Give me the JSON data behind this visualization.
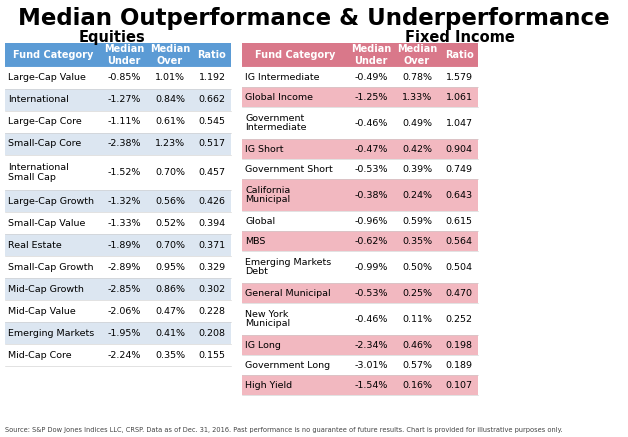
{
  "title": "Median Outperformance & Underperformance",
  "subtitle_left": "Equities",
  "subtitle_right": "Fixed Income",
  "footnote": "Source: S&P Dow Jones Indices LLC, CRSP. Data as of Dec. 31, 2016. Past performance is no guarantee of future results. Chart is provided for illustrative purposes only.",
  "equities_headers": [
    "Fund Category",
    "Median\nUnder",
    "Median\nOver",
    "Ratio"
  ],
  "equities_rows": [
    [
      "Large-Cap Value",
      "-0.85%",
      "1.01%",
      "1.192"
    ],
    [
      "International",
      "-1.27%",
      "0.84%",
      "0.662"
    ],
    [
      "Large-Cap Core",
      "-1.11%",
      "0.61%",
      "0.545"
    ],
    [
      "Small-Cap Core",
      "-2.38%",
      "1.23%",
      "0.517"
    ],
    [
      "International\nSmall Cap",
      "-1.52%",
      "0.70%",
      "0.457"
    ],
    [
      "Large-Cap Growth",
      "-1.32%",
      "0.56%",
      "0.426"
    ],
    [
      "Small-Cap Value",
      "-1.33%",
      "0.52%",
      "0.394"
    ],
    [
      "Real Estate",
      "-1.89%",
      "0.70%",
      "0.371"
    ],
    [
      "Small-Cap Growth",
      "-2.89%",
      "0.95%",
      "0.329"
    ],
    [
      "Mid-Cap Growth",
      "-2.85%",
      "0.86%",
      "0.302"
    ],
    [
      "Mid-Cap Value",
      "-2.06%",
      "0.47%",
      "0.228"
    ],
    [
      "Emerging Markets",
      "-1.95%",
      "0.41%",
      "0.208"
    ],
    [
      "Mid-Cap Core",
      "-2.24%",
      "0.35%",
      "0.155"
    ]
  ],
  "fixed_headers": [
    "Fund Category",
    "Median\nUnder",
    "Median\nOver",
    "Ratio"
  ],
  "fixed_rows": [
    [
      "IG Intermediate",
      "-0.49%",
      "0.78%",
      "1.579"
    ],
    [
      "Global Income",
      "-1.25%",
      "1.33%",
      "1.061"
    ],
    [
      "Government\nIntermediate",
      "-0.46%",
      "0.49%",
      "1.047"
    ],
    [
      "IG Short",
      "-0.47%",
      "0.42%",
      "0.904"
    ],
    [
      "Government Short",
      "-0.53%",
      "0.39%",
      "0.749"
    ],
    [
      "California\nMunicipal",
      "-0.38%",
      "0.24%",
      "0.643"
    ],
    [
      "Global",
      "-0.96%",
      "0.59%",
      "0.615"
    ],
    [
      "MBS",
      "-0.62%",
      "0.35%",
      "0.564"
    ],
    [
      "Emerging Markets\nDebt",
      "-0.99%",
      "0.50%",
      "0.504"
    ],
    [
      "General Municipal",
      "-0.53%",
      "0.25%",
      "0.470"
    ],
    [
      "New York\nMunicipal",
      "-0.46%",
      "0.11%",
      "0.252"
    ],
    [
      "IG Long",
      "-2.34%",
      "0.46%",
      "0.198"
    ],
    [
      "Government Long",
      "-3.01%",
      "0.57%",
      "0.189"
    ],
    [
      "High Yield",
      "-1.54%",
      "0.16%",
      "0.107"
    ]
  ],
  "eq_header_color": "#5b9bd5",
  "eq_row_colors": [
    "#ffffff",
    "#dce6f1"
  ],
  "fi_header_color": "#d9788a",
  "fi_row_colors": [
    "#ffffff",
    "#f2b8c0"
  ],
  "header_text_color": "#ffffff",
  "row_text_color": "#000000"
}
